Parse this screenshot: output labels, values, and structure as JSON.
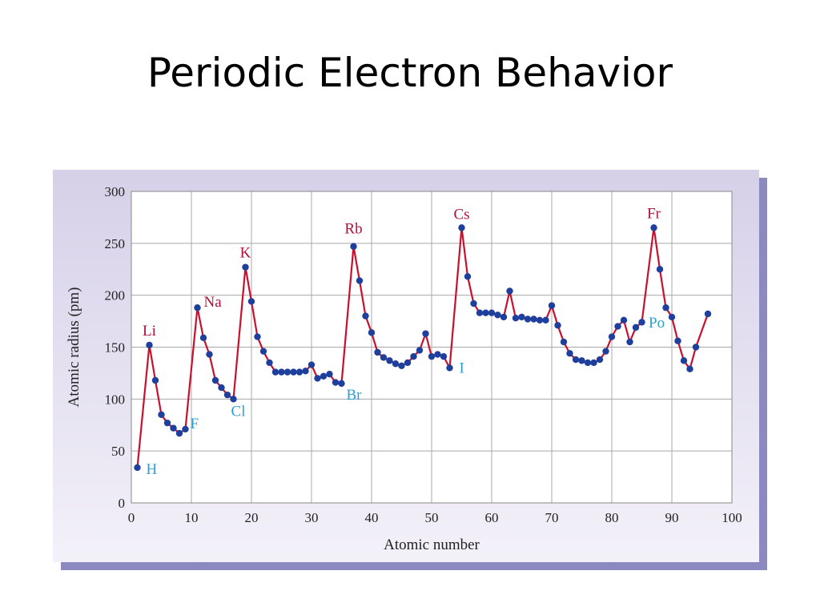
{
  "slide": {
    "title": "Periodic Electron Behavior"
  },
  "colors": {
    "line": "#c8102e",
    "marker": "#1f3f9c",
    "alkali_label": "#b0103a",
    "other_label": "#2c9fd6",
    "grid": "#a8a8a8",
    "frame": "#8c88c0"
  },
  "chart_data": {
    "type": "line",
    "title": "",
    "xlabel": "Atomic number",
    "ylabel": "Atomic radius (pm)",
    "xlim": [
      0,
      100
    ],
    "ylim": [
      0,
      300
    ],
    "xticks": [
      0,
      10,
      20,
      30,
      40,
      50,
      60,
      70,
      80,
      90,
      100
    ],
    "yticks": [
      0,
      50,
      100,
      150,
      200,
      250,
      300
    ],
    "grid": true,
    "series": [
      {
        "x": [
          1,
          3,
          4,
          5,
          6,
          7,
          8,
          9,
          11,
          12,
          13,
          14,
          15,
          16,
          17,
          19,
          20,
          21,
          22,
          23,
          24,
          25,
          26,
          27,
          28,
          29,
          30,
          31,
          32,
          33,
          34,
          35,
          37,
          38,
          39,
          40,
          41,
          42,
          43,
          44,
          45,
          46,
          47,
          48,
          49,
          50,
          51,
          52,
          53,
          55,
          56,
          57,
          58,
          59,
          60,
          61,
          62,
          63,
          64,
          65,
          66,
          67,
          68,
          69,
          70,
          71,
          72,
          73,
          74,
          75,
          76,
          77,
          78,
          79,
          80,
          81,
          82,
          83,
          84,
          85,
          87,
          88,
          89,
          90,
          91,
          92,
          93,
          94,
          96
        ],
        "y": [
          34,
          152,
          118,
          85,
          77,
          72,
          67,
          71,
          188,
          159,
          143,
          118,
          111,
          104,
          100,
          227,
          194,
          160,
          146,
          135,
          126,
          126,
          126,
          126,
          126,
          127,
          133,
          120,
          122,
          124,
          116,
          115,
          247,
          214,
          180,
          164,
          145,
          140,
          137,
          134,
          132,
          135,
          141,
          147,
          163,
          141,
          143,
          141,
          130,
          265,
          218,
          192,
          183,
          183,
          183,
          181,
          179,
          204,
          178,
          179,
          177,
          177,
          176,
          176,
          190,
          171,
          155,
          144,
          138,
          137,
          135,
          135,
          138,
          146,
          160,
          170,
          176,
          155,
          169,
          174,
          265,
          225,
          188,
          179,
          156,
          137,
          129,
          150,
          182
        ]
      }
    ],
    "annotations": [
      {
        "text": "H",
        "x": 1,
        "y": 34,
        "group": "other"
      },
      {
        "text": "Li",
        "x": 3,
        "y": 152,
        "group": "alkali"
      },
      {
        "text": "F",
        "x": 9,
        "y": 71,
        "group": "other"
      },
      {
        "text": "Na",
        "x": 11,
        "y": 188,
        "group": "alkali"
      },
      {
        "text": "Cl",
        "x": 17,
        "y": 100,
        "group": "other"
      },
      {
        "text": "K",
        "x": 19,
        "y": 227,
        "group": "alkali"
      },
      {
        "text": "Br",
        "x": 35,
        "y": 115,
        "group": "other"
      },
      {
        "text": "Rb",
        "x": 37,
        "y": 247,
        "group": "alkali"
      },
      {
        "text": "I",
        "x": 53,
        "y": 130,
        "group": "other"
      },
      {
        "text": "Cs",
        "x": 55,
        "y": 265,
        "group": "alkali"
      },
      {
        "text": "Po",
        "x": 84,
        "y": 169,
        "group": "other"
      },
      {
        "text": "Fr",
        "x": 87,
        "y": 265,
        "group": "alkali"
      }
    ]
  }
}
